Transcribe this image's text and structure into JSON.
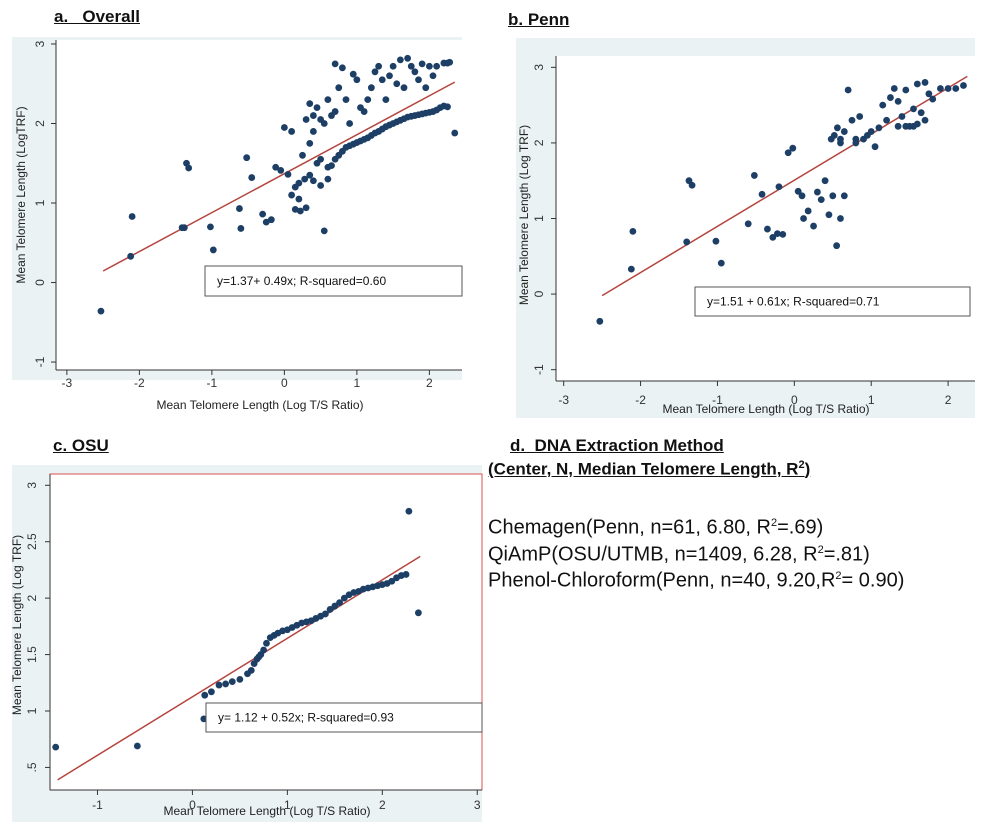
{
  "panel_d": {
    "title": "d.  DNA Extraction Method",
    "subtitle_prefix": "(Center, N, Median Telomere Length, R",
    "subtitle_sup": "2",
    "subtitle_suffix": ")",
    "methods": [
      {
        "pre": "Chemagen(Penn, n=61, 6.80, R",
        "sup": "2",
        "post": "=.69)"
      },
      {
        "pre": "QiAmP(OSU/UTMB, n=1409, 6.28, R",
        "sup": "2",
        "post": "=.81)"
      },
      {
        "pre": "Phenol-Chloroform(Penn, n=40, 9.20,R",
        "sup": "2",
        "post": "= 0.90)"
      }
    ]
  },
  "chart_data": [
    {
      "type": "scatter",
      "title": "a.   Overall",
      "xlabel": "Mean Telomere Length (Log T/S Ratio)",
      "ylabel": "Mean Telomere Length (LogTRF)",
      "xlim": [
        -3.15,
        2.45
      ],
      "ylim": [
        -1.1,
        3.05
      ],
      "xticks": [
        -3,
        -2,
        -1,
        0,
        1,
        2
      ],
      "xtick_labels": [
        "-3",
        "-2",
        "-1",
        "0",
        "1",
        "2"
      ],
      "yticks": [
        -1,
        0,
        1,
        2,
        3
      ],
      "ytick_labels": [
        "-1",
        "0",
        "1",
        "2",
        "3"
      ],
      "fit_line": {
        "x": [
          -2.5,
          2.35
        ],
        "y": [
          0.145,
          2.52
        ]
      },
      "annotation": "y=1.37+ 0.49x; R-squared=0.60",
      "points": [
        [
          -2.53,
          -0.36
        ],
        [
          -2.12,
          0.33
        ],
        [
          -2.1,
          0.83
        ],
        [
          -1.41,
          0.69
        ],
        [
          -1.38,
          0.69
        ],
        [
          -1.35,
          1.5
        ],
        [
          -1.32,
          1.44
        ],
        [
          -1.02,
          0.7
        ],
        [
          -0.98,
          0.41
        ],
        [
          -0.6,
          0.68
        ],
        [
          -0.62,
          0.93
        ],
        [
          -0.52,
          1.57
        ],
        [
          -0.45,
          1.32
        ],
        [
          -0.3,
          0.86
        ],
        [
          -0.25,
          0.76
        ],
        [
          -0.18,
          0.79
        ],
        [
          -0.12,
          1.45
        ],
        [
          -0.05,
          1.41
        ],
        [
          0.05,
          1.36
        ],
        [
          0.1,
          1.1
        ],
        [
          0.15,
          0.92
        ],
        [
          0.22,
          0.9
        ],
        [
          0.3,
          0.94
        ],
        [
          0.1,
          1.9
        ],
        [
          0.0,
          1.95
        ],
        [
          0.2,
          1.25
        ],
        [
          0.28,
          1.3
        ],
        [
          0.35,
          1.35
        ],
        [
          0.4,
          1.28
        ],
        [
          0.45,
          1.5
        ],
        [
          0.5,
          1.22
        ],
        [
          0.55,
          0.65
        ],
        [
          0.6,
          1.45
        ],
        [
          0.65,
          1.47
        ],
        [
          0.7,
          1.55
        ],
        [
          0.75,
          1.6
        ],
        [
          0.8,
          1.65
        ],
        [
          0.85,
          1.7
        ],
        [
          0.9,
          1.72
        ],
        [
          0.95,
          1.74
        ],
        [
          1.0,
          1.76
        ],
        [
          1.05,
          1.78
        ],
        [
          1.1,
          1.8
        ],
        [
          1.15,
          1.82
        ],
        [
          1.2,
          1.85
        ],
        [
          1.25,
          1.88
        ],
        [
          1.3,
          1.9
        ],
        [
          1.35,
          1.93
        ],
        [
          1.4,
          1.96
        ],
        [
          1.45,
          1.98
        ],
        [
          1.5,
          2.0
        ],
        [
          1.55,
          2.02
        ],
        [
          1.6,
          2.04
        ],
        [
          1.65,
          2.06
        ],
        [
          1.7,
          2.08
        ],
        [
          1.75,
          2.09
        ],
        [
          1.8,
          2.1
        ],
        [
          1.85,
          2.11
        ],
        [
          1.9,
          2.12
        ],
        [
          1.95,
          2.13
        ],
        [
          2.0,
          2.14
        ],
        [
          2.05,
          2.15
        ],
        [
          2.1,
          2.17
        ],
        [
          2.15,
          2.2
        ],
        [
          2.2,
          2.22
        ],
        [
          2.25,
          2.21
        ],
        [
          0.3,
          2.05
        ],
        [
          0.35,
          2.25
        ],
        [
          0.4,
          2.1
        ],
        [
          0.45,
          2.2
        ],
        [
          0.5,
          2.05
        ],
        [
          0.55,
          2.0
        ],
        [
          0.6,
          2.3
        ],
        [
          0.65,
          2.1
        ],
        [
          0.7,
          2.15
        ],
        [
          0.75,
          2.45
        ],
        [
          0.7,
          2.75
        ],
        [
          0.8,
          2.7
        ],
        [
          0.85,
          2.3
        ],
        [
          0.9,
          2.0
        ],
        [
          0.95,
          2.62
        ],
        [
          1.0,
          2.55
        ],
        [
          1.05,
          2.2
        ],
        [
          1.1,
          2.15
        ],
        [
          1.15,
          2.3
        ],
        [
          1.2,
          2.45
        ],
        [
          1.25,
          2.65
        ],
        [
          1.3,
          2.72
        ],
        [
          1.35,
          2.55
        ],
        [
          1.4,
          2.3
        ],
        [
          1.45,
          2.6
        ],
        [
          1.5,
          2.72
        ],
        [
          1.55,
          2.5
        ],
        [
          1.6,
          2.8
        ],
        [
          1.65,
          2.45
        ],
        [
          1.7,
          2.82
        ],
        [
          1.75,
          2.72
        ],
        [
          1.8,
          2.65
        ],
        [
          1.85,
          2.55
        ],
        [
          1.9,
          2.75
        ],
        [
          1.95,
          2.45
        ],
        [
          2.0,
          2.72
        ],
        [
          2.05,
          2.6
        ],
        [
          2.1,
          2.72
        ],
        [
          2.2,
          2.76
        ],
        [
          2.25,
          2.76
        ],
        [
          2.28,
          2.77
        ],
        [
          2.35,
          1.88
        ],
        [
          0.15,
          1.2
        ],
        [
          0.2,
          1.05
        ],
        [
          0.6,
          1.3
        ],
        [
          0.25,
          1.6
        ],
        [
          0.35,
          1.75
        ],
        [
          0.4,
          1.9
        ],
        [
          0.5,
          1.55
        ]
      ]
    },
    {
      "type": "scatter",
      "title": "b. Penn",
      "xlabel": "Mean Telomere Length (Log T/S Ratio)",
      "ylabel": "Mean Telomere Length (Log TRF)",
      "xlim": [
        -3.1,
        2.35
      ],
      "ylim": [
        -1.15,
        3.15
      ],
      "xticks": [
        -3,
        -2,
        -1,
        0,
        1,
        2
      ],
      "xtick_labels": [
        "-3",
        "-2",
        "-1",
        "0",
        "1",
        "2"
      ],
      "yticks": [
        -1,
        0,
        1,
        2,
        3
      ],
      "ytick_labels": [
        "-1",
        "0",
        "1",
        "2",
        "3"
      ],
      "fit_line": {
        "x": [
          -2.5,
          2.25
        ],
        "y": [
          -0.02,
          2.88
        ]
      },
      "annotation": "y=1.51 + 0.61x; R-squared=0.71",
      "points": [
        [
          -2.53,
          -0.36
        ],
        [
          -2.12,
          0.33
        ],
        [
          -2.1,
          0.83
        ],
        [
          -1.4,
          0.69
        ],
        [
          -1.37,
          1.5
        ],
        [
          -1.33,
          1.44
        ],
        [
          -1.02,
          0.7
        ],
        [
          -0.95,
          0.41
        ],
        [
          -0.6,
          0.93
        ],
        [
          -0.52,
          1.57
        ],
        [
          -0.42,
          1.32
        ],
        [
          -0.35,
          0.86
        ],
        [
          -0.28,
          0.75
        ],
        [
          -0.22,
          0.8
        ],
        [
          -0.15,
          0.79
        ],
        [
          -0.2,
          1.42
        ],
        [
          -0.08,
          1.87
        ],
        [
          -0.02,
          1.93
        ],
        [
          0.05,
          1.36
        ],
        [
          0.1,
          1.3
        ],
        [
          0.12,
          1.0
        ],
        [
          0.18,
          1.1
        ],
        [
          0.25,
          0.9
        ],
        [
          0.3,
          1.35
        ],
        [
          0.35,
          1.25
        ],
        [
          0.4,
          1.5
        ],
        [
          0.45,
          1.05
        ],
        [
          0.5,
          1.3
        ],
        [
          0.55,
          0.64
        ],
        [
          0.6,
          1.0
        ],
        [
          0.65,
          1.3
        ],
        [
          0.48,
          2.05
        ],
        [
          0.52,
          2.1
        ],
        [
          0.56,
          2.2
        ],
        [
          0.6,
          2.0
        ],
        [
          0.65,
          2.15
        ],
        [
          0.7,
          2.7
        ],
        [
          0.75,
          2.3
        ],
        [
          0.8,
          2.05
        ],
        [
          0.85,
          2.35
        ],
        [
          0.9,
          2.05
        ],
        [
          0.95,
          2.1
        ],
        [
          1.0,
          2.15
        ],
        [
          1.05,
          1.95
        ],
        [
          1.1,
          2.2
        ],
        [
          1.15,
          2.5
        ],
        [
          1.2,
          2.3
        ],
        [
          1.25,
          2.6
        ],
        [
          1.3,
          2.72
        ],
        [
          1.35,
          2.55
        ],
        [
          1.4,
          2.35
        ],
        [
          1.45,
          2.7
        ],
        [
          1.5,
          2.22
        ],
        [
          1.55,
          2.45
        ],
        [
          1.6,
          2.78
        ],
        [
          1.65,
          2.4
        ],
        [
          1.7,
          2.8
        ],
        [
          1.75,
          2.65
        ],
        [
          1.8,
          2.58
        ],
        [
          1.9,
          2.72
        ],
        [
          2.0,
          2.72
        ],
        [
          2.1,
          2.72
        ],
        [
          2.2,
          2.76
        ],
        [
          1.6,
          2.25
        ],
        [
          1.7,
          2.3
        ],
        [
          1.35,
          2.22
        ],
        [
          1.45,
          2.22
        ],
        [
          1.55,
          2.22
        ],
        [
          0.8,
          2.0
        ],
        [
          0.6,
          2.05
        ]
      ]
    },
    {
      "type": "scatter",
      "title": "c. OSU",
      "xlabel": "Mean Telomere Length (Log T/S Ratio)",
      "ylabel": "Mean Telomere Length (Log TRF)",
      "xlim": [
        -1.5,
        3.05
      ],
      "ylim": [
        0.3,
        3.1
      ],
      "xticks": [
        -1,
        0,
        1,
        2,
        3
      ],
      "xtick_labels": [
        "-1",
        "0",
        "1",
        "2",
        "3"
      ],
      "yticks": [
        0.5,
        1,
        1.5,
        2,
        2.5,
        3
      ],
      "ytick_labels": [
        ".5",
        "1",
        "1.5",
        "2",
        "2.5",
        "3"
      ],
      "fit_line": {
        "x": [
          -1.42,
          2.4
        ],
        "y": [
          0.39,
          2.37
        ]
      },
      "annotation": "y= 1.12 + 0.52x; R-squared=0.93",
      "points": [
        [
          -1.44,
          0.68
        ],
        [
          -0.58,
          0.69
        ],
        [
          0.12,
          0.93
        ],
        [
          0.13,
          1.14
        ],
        [
          0.2,
          1.17
        ],
        [
          0.28,
          1.23
        ],
        [
          0.35,
          1.24
        ],
        [
          0.42,
          1.26
        ],
        [
          0.5,
          1.28
        ],
        [
          0.58,
          1.33
        ],
        [
          0.62,
          1.36
        ],
        [
          0.65,
          1.42
        ],
        [
          0.68,
          1.46
        ],
        [
          0.7,
          1.48
        ],
        [
          0.72,
          1.5
        ],
        [
          0.75,
          1.54
        ],
        [
          0.78,
          1.6
        ],
        [
          0.82,
          1.65
        ],
        [
          0.86,
          1.67
        ],
        [
          0.9,
          1.69
        ],
        [
          0.95,
          1.71
        ],
        [
          1.0,
          1.72
        ],
        [
          1.05,
          1.74
        ],
        [
          1.1,
          1.76
        ],
        [
          1.15,
          1.78
        ],
        [
          1.2,
          1.79
        ],
        [
          1.25,
          1.8
        ],
        [
          1.3,
          1.82
        ],
        [
          1.35,
          1.84
        ],
        [
          1.4,
          1.86
        ],
        [
          1.45,
          1.9
        ],
        [
          1.5,
          1.93
        ],
        [
          1.55,
          1.96
        ],
        [
          1.6,
          2.0
        ],
        [
          1.65,
          2.03
        ],
        [
          1.7,
          2.05
        ],
        [
          1.75,
          2.06
        ],
        [
          1.8,
          2.08
        ],
        [
          1.85,
          2.09
        ],
        [
          1.9,
          2.1
        ],
        [
          1.95,
          2.11
        ],
        [
          2.0,
          2.12
        ],
        [
          2.05,
          2.13
        ],
        [
          2.1,
          2.15
        ],
        [
          2.15,
          2.18
        ],
        [
          2.2,
          2.2
        ],
        [
          2.25,
          2.21
        ],
        [
          2.28,
          2.77
        ],
        [
          2.38,
          1.87
        ]
      ]
    }
  ]
}
